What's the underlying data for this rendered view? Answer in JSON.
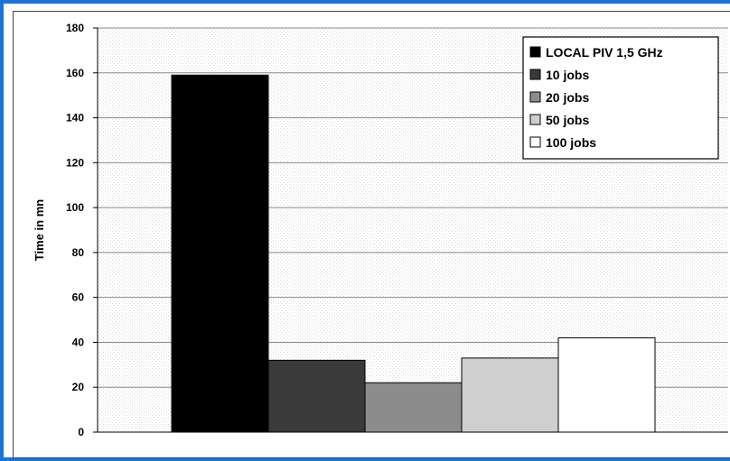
{
  "chart_data": {
    "type": "bar",
    "title": "",
    "xlabel": "",
    "ylabel": "Time in mn",
    "ylim": [
      0,
      180
    ],
    "yticks": [
      0,
      20,
      40,
      60,
      80,
      100,
      120,
      140,
      160,
      180
    ],
    "grid": true,
    "legend_position": "top-right",
    "categories": [
      ""
    ],
    "series": [
      {
        "name": "LOCAL PIV 1,5 GHz",
        "values": [
          159
        ],
        "color": "#000000"
      },
      {
        "name": "10 jobs",
        "values": [
          32
        ],
        "color": "#3a3a3a"
      },
      {
        "name": "20 jobs",
        "values": [
          22
        ],
        "color": "#8c8c8c"
      },
      {
        "name": "50 jobs",
        "values": [
          33
        ],
        "color": "#cfcfcf"
      },
      {
        "name": "100 jobs",
        "values": [
          42
        ],
        "color": "#ffffff"
      }
    ]
  }
}
